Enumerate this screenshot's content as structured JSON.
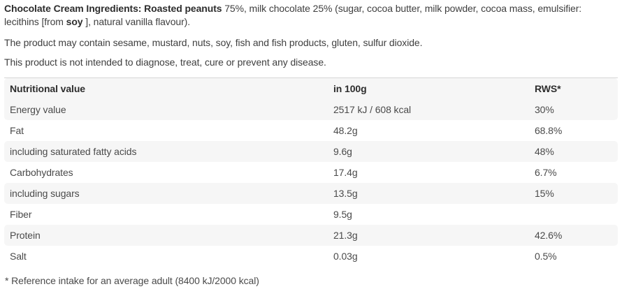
{
  "ingredients": {
    "lead_bold": "Chocolate Cream Ingredients: Roasted peanuts",
    "body": "75%, milk chocolate 25% (sugar, cocoa butter, milk powder, cocoa mass, emulsifier: lecithins [from",
    "soy_bold": "soy",
    "tail": "], natural vanilla flavour)."
  },
  "allergen_note": "The product may contain sesame, mustard, nuts, soy, fish and fish products, gluten, sulfur dioxide.",
  "disclaimer": "This product is not intended to diagnose, treat, cure or prevent any disease.",
  "nutrition_table": {
    "headers": [
      "Nutritional value",
      "in 100g",
      "RWS*"
    ],
    "rows": [
      {
        "label": "Energy value",
        "per_100g": "2517 kJ / 608 kcal",
        "rws": "30%"
      },
      {
        "label": "Fat",
        "per_100g": "48.2g",
        "rws": "68.8%"
      },
      {
        "label": "including saturated fatty acids",
        "per_100g": "9.6g",
        "rws": "48%"
      },
      {
        "label": "Carbohydrates",
        "per_100g": "17.4g",
        "rws": "6.7%"
      },
      {
        "label": "including sugars",
        "per_100g": "13.5g",
        "rws": "15%"
      },
      {
        "label": "Fiber",
        "per_100g": "9.5g",
        "rws": ""
      },
      {
        "label": "Protein",
        "per_100g": "21.3g",
        "rws": "42.6%"
      },
      {
        "label": "Salt",
        "per_100g": "0.03g",
        "rws": "0.5%"
      }
    ],
    "footnote": "* Reference intake for an average adult (8400 kJ/2000 kcal)"
  },
  "colors": {
    "stripe": "#f6f6f6",
    "table_top_border": "#d6d6d6",
    "text": "#3f3f3f",
    "bold_text": "#2d2d2d"
  }
}
